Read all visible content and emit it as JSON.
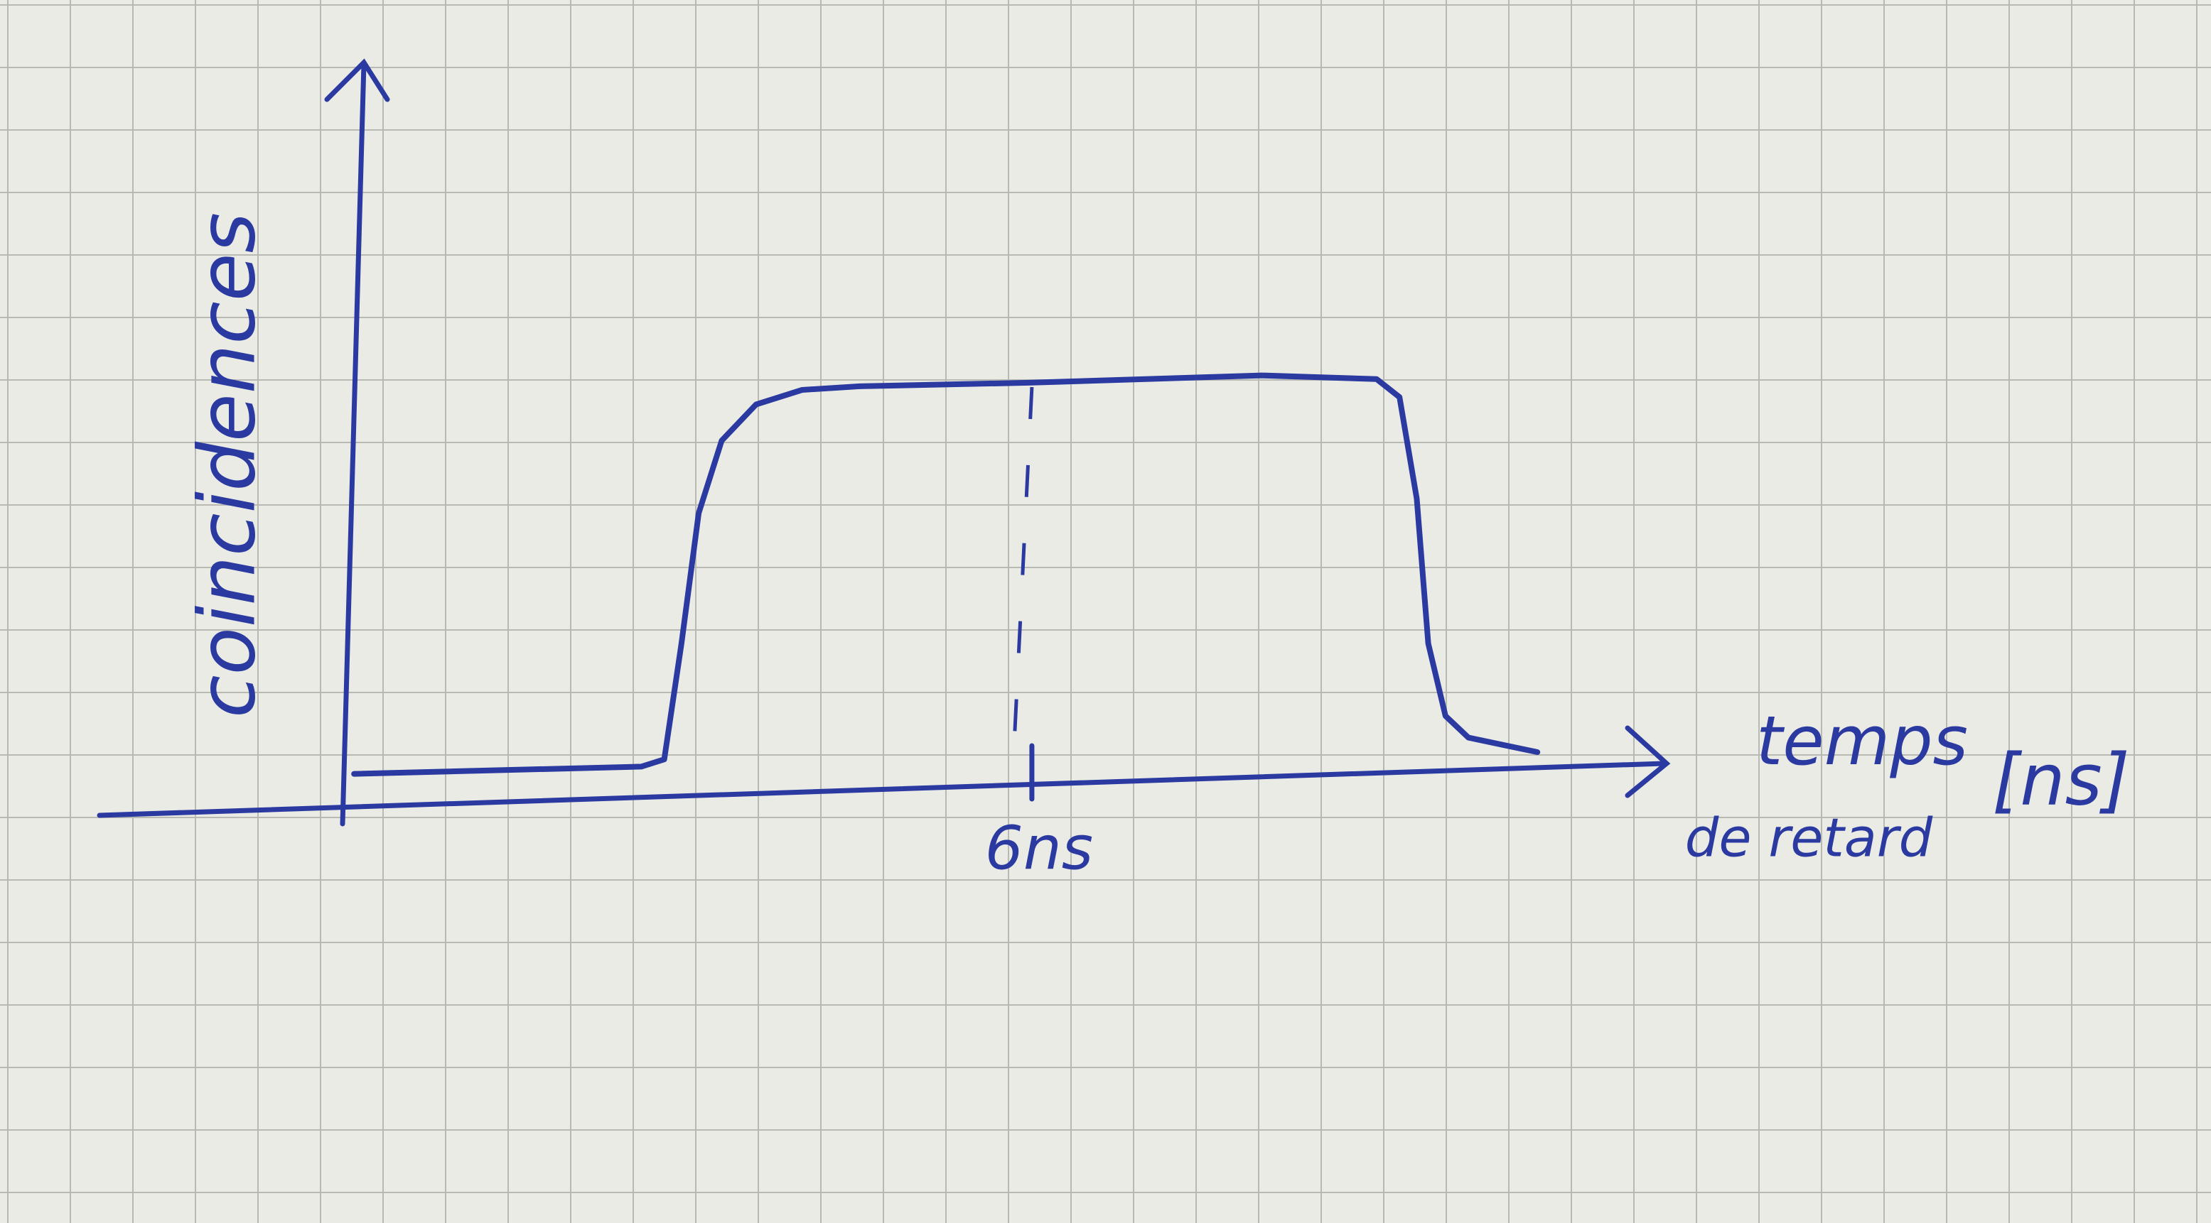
{
  "chart_data": {
    "type": "line",
    "ylabel": "coincidences",
    "xlabel": [
      "temps",
      "de retard"
    ],
    "xunit": "[ns]",
    "xlim": [
      0,
      11.5
    ],
    "ylim": [
      0,
      1
    ],
    "xticks": [
      {
        "value": 6,
        "label": "6ns"
      }
    ],
    "reference_line_x": 6,
    "series": [
      {
        "color": "#2b3aa0",
        "x": [
          0.1,
          2.6,
          2.8,
          2.95,
          3.1,
          3.3,
          3.6,
          4.0,
          4.5,
          6,
          8.0,
          9.0,
          9.2,
          9.35,
          9.45,
          9.6,
          9.8,
          10.1,
          10.4
        ],
        "values": [
          0.02,
          0.03,
          0.04,
          0.2,
          0.38,
          0.48,
          0.53,
          0.55,
          0.555,
          0.56,
          0.57,
          0.565,
          0.54,
          0.4,
          0.2,
          0.1,
          0.07,
          0.06,
          0.05
        ]
      }
    ]
  }
}
